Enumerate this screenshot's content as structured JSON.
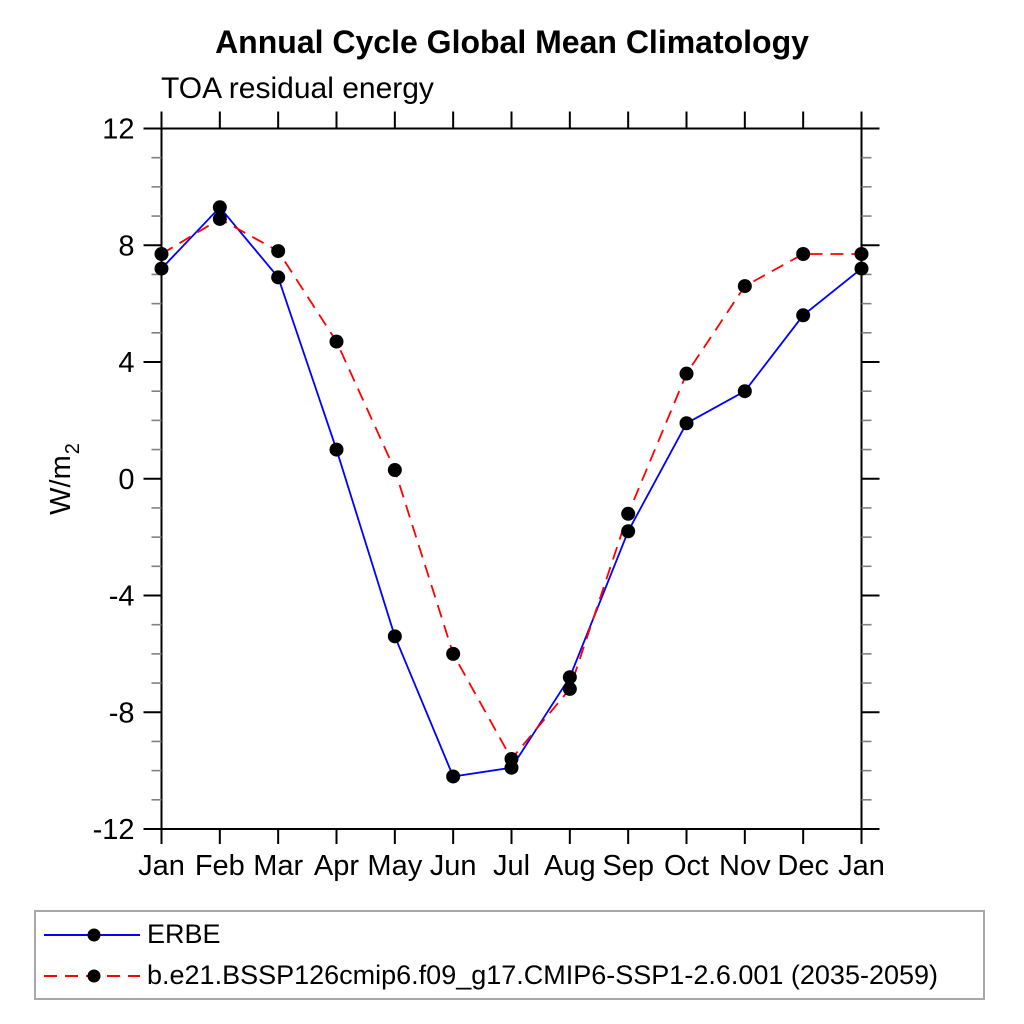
{
  "title": "Annual Cycle Global Mean Climatology",
  "subtitle": "TOA residual energy",
  "colors": {
    "erbe_line": "#0000ff",
    "model_line": "#ff0000",
    "marker": "#000000",
    "axis": "#000000",
    "minor_tick": "#808080",
    "legend_border": "#a8a8a8"
  },
  "legend": {
    "items": [
      {
        "label": "ERBE",
        "style": "solid",
        "color": "#0000ff"
      },
      {
        "label": "b.e21.BSSP126cmip6.f09_g17.CMIP6-SSP1-2.6.001 (2035-2059)",
        "style": "dashed",
        "color": "#ff0000"
      }
    ]
  },
  "chart_data": {
    "type": "line",
    "title": "Annual Cycle Global Mean Climatology",
    "subtitle": "TOA residual energy",
    "ylabel_base": "W/m",
    "ylabel_exponent": "2",
    "x_tick_labels": [
      "Jan",
      "Feb",
      "Mar",
      "Apr",
      "May",
      "Jun",
      "Jul",
      "Aug",
      "Sep",
      "Oct",
      "Nov",
      "Dec",
      "Jan"
    ],
    "ylim": [
      -12,
      12
    ],
    "ytick_major": [
      12,
      8,
      4,
      0,
      -4,
      -8,
      -12
    ],
    "ytick_minor_step": 1,
    "grid": false,
    "legend_position": "bottom-left-box",
    "series": [
      {
        "name": "ERBE",
        "color": "#0000ff",
        "style": "solid",
        "marker": "filled-circle",
        "marker_color": "#000000",
        "values": [
          7.2,
          9.3,
          6.9,
          1.0,
          -5.4,
          -10.2,
          -9.9,
          -6.8,
          -1.8,
          1.9,
          3.0,
          5.6,
          7.2
        ]
      },
      {
        "name": "b.e21.BSSP126cmip6.f09_g17.CMIP6-SSP1-2.6.001 (2035-2059)",
        "color": "#ff0000",
        "style": "dashed",
        "marker": "filled-circle",
        "marker_color": "#000000",
        "values": [
          7.7,
          8.9,
          7.8,
          4.7,
          0.3,
          -6.0,
          -9.6,
          -7.2,
          -1.2,
          3.6,
          6.6,
          7.7,
          7.7
        ]
      }
    ]
  }
}
